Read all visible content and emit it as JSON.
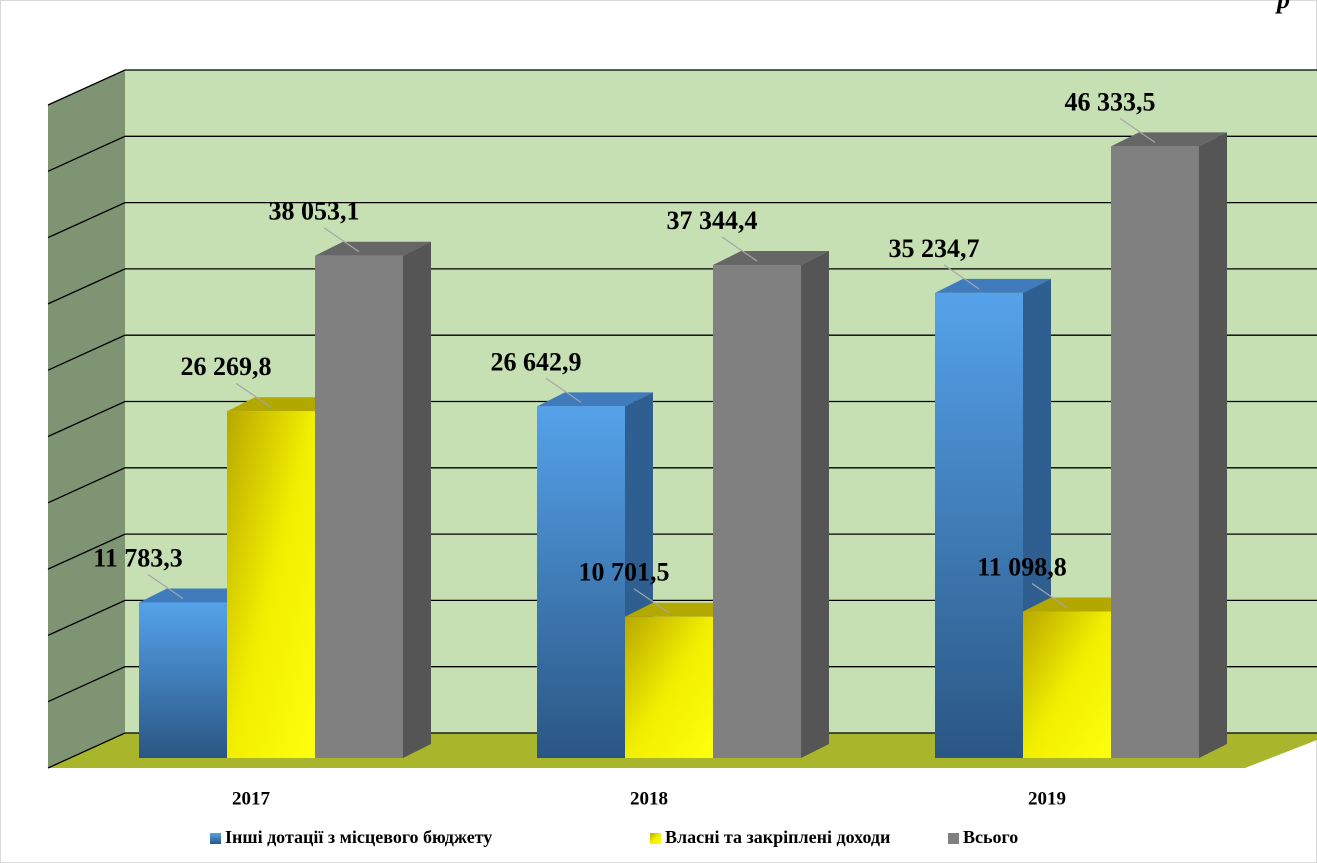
{
  "chart_data": {
    "type": "bar3d",
    "annotation": "р",
    "categories": [
      "2017",
      "2018",
      "2019"
    ],
    "series": [
      {
        "name": "Інші дотації з місцевого бюджету",
        "color": "#4a90d9",
        "values": [
          11783.3,
          26642.9,
          35234.7
        ],
        "value_labels": [
          "11 783,3",
          "26 642,9",
          "35 234,7"
        ]
      },
      {
        "name": "Власні та закріплені доходи",
        "color": "#ffff00",
        "values": [
          26269.8,
          10701.5,
          11098.8
        ],
        "value_labels": [
          "26 269,8",
          "10 701,5",
          "11 098,8"
        ]
      },
      {
        "name": "Всього",
        "color": "#808080",
        "values": [
          38053.1,
          37344.4,
          46333.5
        ],
        "value_labels": [
          "38 053,1",
          "37 344,4",
          "46 333,5"
        ]
      }
    ],
    "ylim": [
      0,
      50000
    ],
    "yticks": [
      0,
      5000,
      10000,
      15000,
      20000,
      25000,
      30000,
      35000,
      40000,
      45000,
      50000
    ],
    "grid": true,
    "legend": "bottom"
  }
}
